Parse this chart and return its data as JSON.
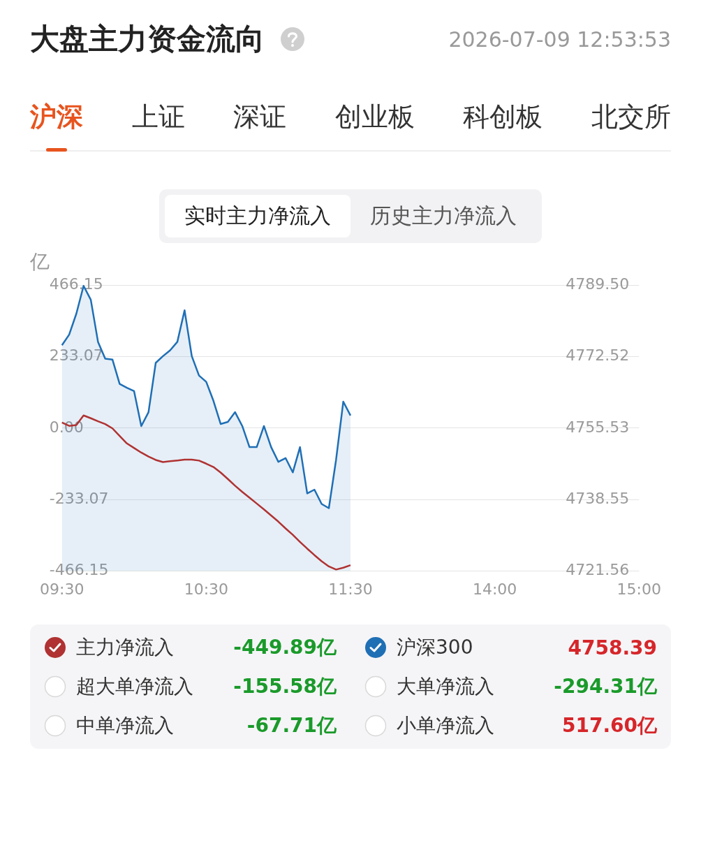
{
  "chart_data": {
    "type": "line",
    "title": "大盘主力资金流向",
    "subtitle": "2026-07-09 12:53:53",
    "ylabel": "亿",
    "annotations": [
      "沪深",
      "上证",
      "深证",
      "创业板",
      "科创板",
      "北交所",
      "实时主力净流入",
      "历史主力净流入",
      "-449.89亿",
      "4758.39",
      "超大单净流入",
      "-155.58亿",
      "大单净流入",
      "-294.31亿",
      "中单净流入",
      "-67.71亿",
      "小单净流入",
      "517.60亿"
    ],
    "categories": [
      "09:30",
      null,
      null,
      null,
      null,
      null,
      null,
      null,
      null,
      null,
      null,
      null,
      null,
      null,
      null,
      null,
      null,
      null,
      null,
      null,
      "10:30",
      null,
      null,
      null,
      null,
      null,
      null,
      null,
      null,
      null,
      null,
      null,
      null,
      null,
      null,
      null,
      null,
      null,
      null,
      null,
      "11:30",
      null,
      null,
      null,
      null,
      null,
      null,
      null,
      null,
      null,
      null,
      null,
      null,
      null,
      null,
      null,
      null,
      null,
      null,
      null,
      "14:00",
      null,
      null,
      null,
      null,
      null,
      null,
      null,
      null,
      null,
      null,
      null,
      null,
      null,
      null,
      null,
      null,
      null,
      null,
      null,
      "15:00"
    ],
    "ylim": [
      -466.15,
      466.15
    ],
    "yticks": [
      -466.15,
      -233.07,
      {
        "value": 0,
        "label": "0.00"
      },
      233.07,
      466.15
    ],
    "y2lim": [
      4721.56,
      4789.5
    ],
    "y2ticks": [
      4721.56,
      4738.55,
      4755.53,
      4772.52,
      {
        "value": 4789.5,
        "label": "4789.50"
      }
    ],
    "grid": "y",
    "legend": "bottom",
    "series": [
      {
        "name": "主力净流入",
        "type": "line",
        "color": "#b03232",
        "values": [
          18,
          7,
          10,
          41,
          32,
          22,
          13,
          -1,
          -26,
          -50,
          -65,
          -80,
          -93,
          -104,
          -111,
          -108,
          -106,
          -103,
          -103,
          -106,
          -116,
          -127,
          -145,
          -166,
          -188,
          -208,
          -227,
          -246,
          -265,
          -285,
          -305,
          -327,
          -348,
          -371,
          -393,
          -414,
          -434,
          -451,
          -461,
          -455,
          -447,
          null,
          null,
          null,
          null,
          null,
          null,
          null,
          null,
          null,
          null,
          null,
          null,
          null,
          null,
          null,
          null,
          null,
          null,
          null,
          null,
          null,
          null,
          null,
          null,
          null,
          null,
          null,
          null,
          null,
          null,
          null,
          null,
          null,
          null,
          null,
          null,
          null,
          null,
          null,
          null
        ]
      },
      {
        "name": "沪深300",
        "type": "area",
        "axis": "y2",
        "color": "#1f6fb5",
        "values": [
          4775.2,
          4777.7,
          4782.7,
          4789.3,
          4786.0,
          4776,
          4772,
          4771.8,
          4766,
          4765.1,
          4764.3,
          4756,
          4759.3,
          4771,
          4772.6,
          4774,
          4776.0,
          4783.5,
          4772.6,
          4768,
          4766.5,
          4762,
          4756.5,
          4757,
          4759.3,
          4756.0,
          4751.0,
          4751.0,
          4756.0,
          4751,
          4747.5,
          4748.4,
          4745,
          4751.0,
          4740,
          4740.9,
          4737.5,
          4736.5,
          4748,
          4761.8,
          4758.5,
          null,
          null,
          null,
          null,
          null,
          null,
          null,
          null,
          null,
          null,
          null,
          null,
          null,
          null,
          null,
          null,
          null,
          null,
          null,
          null,
          null,
          null,
          null,
          null,
          null,
          null,
          null,
          null,
          null,
          null,
          null,
          null,
          null,
          null,
          null,
          null,
          null,
          null,
          null,
          null
        ]
      }
    ]
  }
}
